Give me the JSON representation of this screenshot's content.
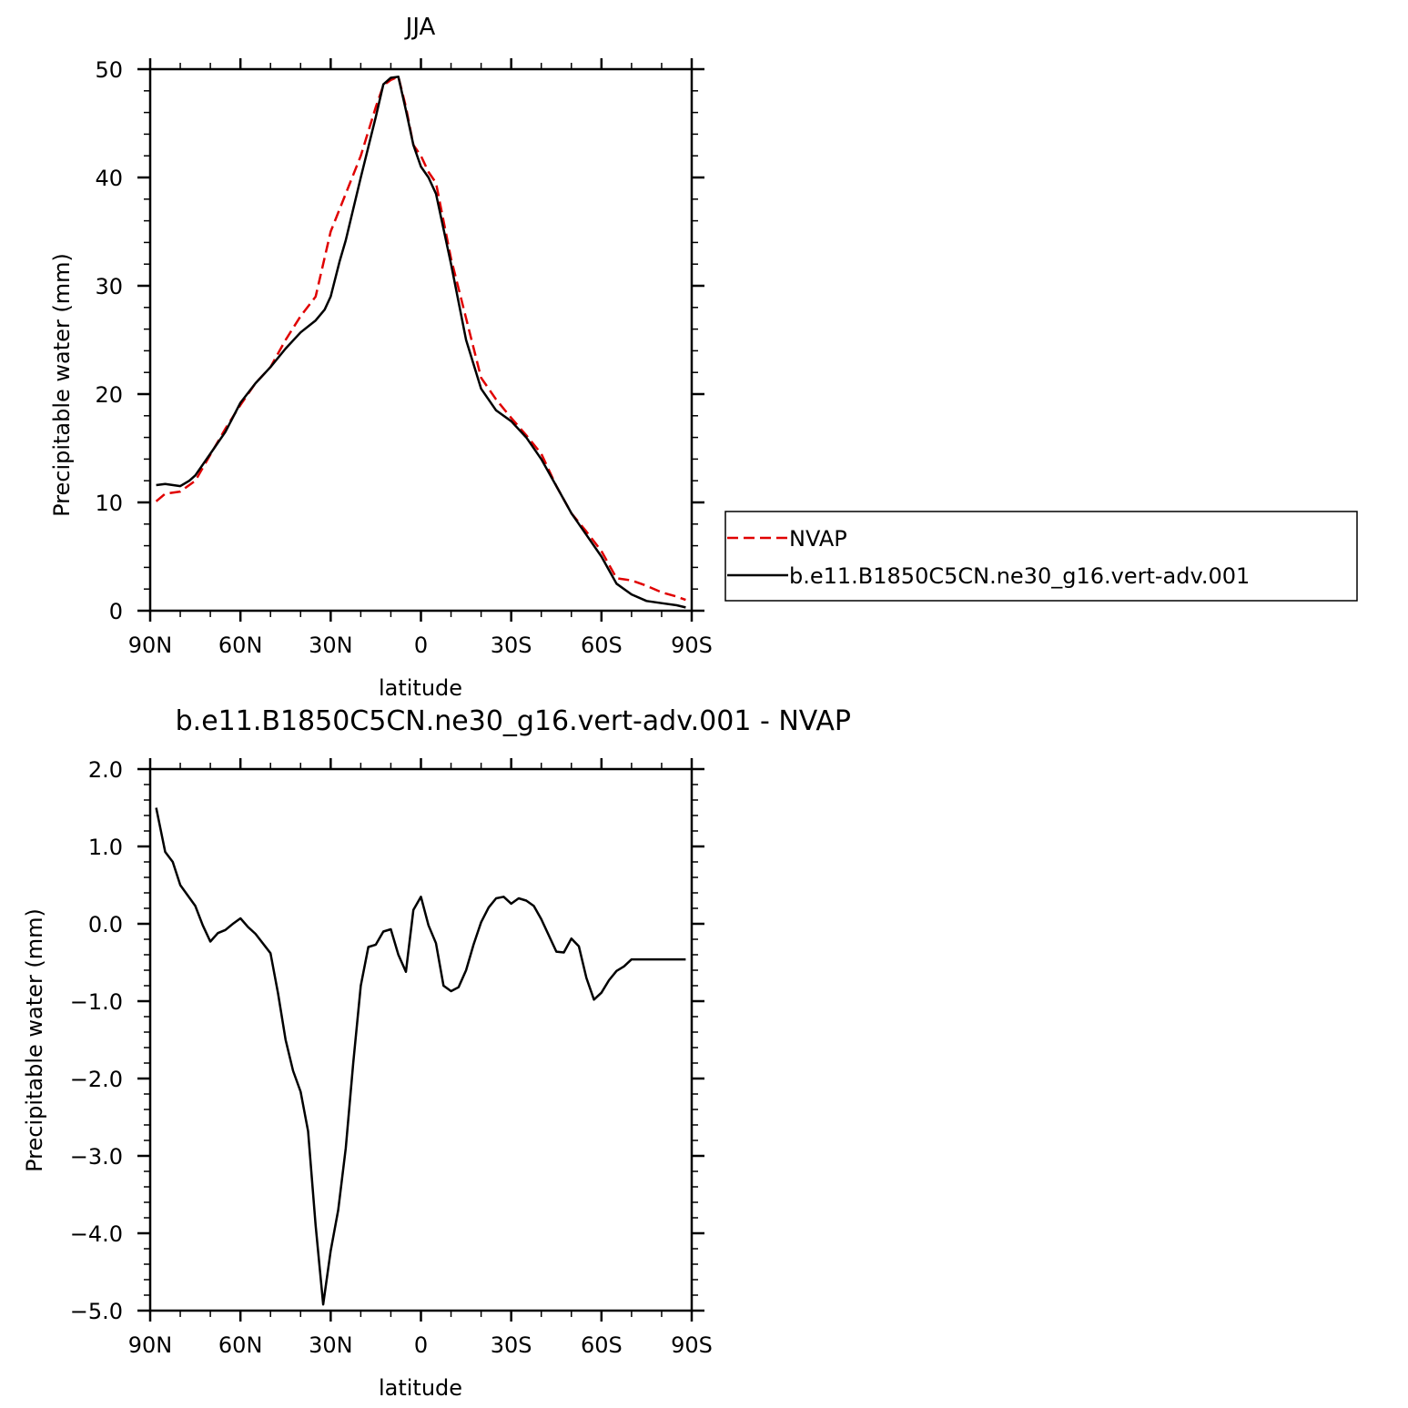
{
  "chart_data": [
    {
      "type": "line",
      "title": "JJA",
      "xlabel": "latitude",
      "ylabel": "Precipitable water (mm)",
      "xlim": [
        90,
        -90
      ],
      "ylim": [
        0,
        50
      ],
      "x_ticks": [
        90,
        60,
        30,
        0,
        -30,
        -60,
        -90
      ],
      "x_tick_labels": [
        "90N",
        "60N",
        "30N",
        "0",
        "30S",
        "60S",
        "90S"
      ],
      "y_ticks": [
        0,
        10,
        20,
        30,
        40,
        50
      ],
      "y_tick_labels": [
        "0",
        "10",
        "20",
        "30",
        "40",
        "50"
      ],
      "legend": {
        "placement": "right",
        "entries": [
          "NVAP",
          "b.e11.B1850C5CN.ne30_g16.vert-adv.001"
        ]
      },
      "series": [
        {
          "name": "NVAP",
          "color": "#e00000",
          "dash": "dashed",
          "x": [
            88,
            85,
            80,
            75,
            70,
            65,
            60,
            55,
            50,
            45,
            40,
            35,
            30,
            25,
            20,
            15,
            12.5,
            10,
            7.5,
            5,
            2.5,
            0,
            -2.5,
            -5,
            -10,
            -15,
            -20,
            -25,
            -30,
            -35,
            -40,
            -45,
            -50,
            -55,
            -60,
            -65,
            -70,
            -75,
            -80,
            -85,
            -88
          ],
          "y": [
            10.1,
            10.8,
            11.0,
            12.0,
            14.4,
            16.8,
            19.0,
            21.0,
            22.5,
            25.0,
            27.2,
            29.0,
            35.0,
            38.5,
            42.0,
            46.5,
            48.5,
            49.0,
            49.3,
            46.5,
            43.0,
            42.0,
            40.5,
            39.5,
            32.5,
            27.0,
            21.5,
            19.5,
            17.8,
            16.2,
            14.5,
            11.5,
            9.0,
            7.3,
            5.5,
            3.0,
            2.8,
            2.3,
            1.7,
            1.3,
            1.0
          ]
        },
        {
          "name": "b.e11.B1850C5CN.ne30_g16.vert-adv.001",
          "color": "#000000",
          "dash": "solid",
          "x": [
            88,
            85,
            80,
            77,
            75,
            70,
            65,
            60,
            55,
            50,
            45,
            40,
            35,
            32,
            30,
            27,
            25,
            20,
            15,
            12.5,
            10,
            7.5,
            5,
            2.5,
            0,
            -2.5,
            -5,
            -10,
            -15,
            -20,
            -25,
            -30,
            -35,
            -40,
            -45,
            -50,
            -55,
            -60,
            -65,
            -70,
            -75,
            -80,
            -85,
            -88
          ],
          "y": [
            11.6,
            11.7,
            11.5,
            12.0,
            12.5,
            14.5,
            16.5,
            19.2,
            21.0,
            22.5,
            24.2,
            25.7,
            26.8,
            27.8,
            29.0,
            32.3,
            34.2,
            40.0,
            45.6,
            48.6,
            49.2,
            49.3,
            46.2,
            43.0,
            41.0,
            40.0,
            38.5,
            32.0,
            25.0,
            20.5,
            18.5,
            17.5,
            16.0,
            14.0,
            11.5,
            9.0,
            7.0,
            5.0,
            2.5,
            1.5,
            0.9,
            0.7,
            0.5,
            0.3
          ]
        }
      ]
    },
    {
      "type": "line",
      "title": "b.e11.B1850C5CN.ne30_g16.vert-adv.001  -  NVAP",
      "xlabel": "latitude",
      "ylabel": "Precipitable water (mm)",
      "xlim": [
        90,
        -90
      ],
      "ylim": [
        -5.0,
        2.0
      ],
      "x_ticks": [
        90,
        60,
        30,
        0,
        -30,
        -60,
        -90
      ],
      "x_tick_labels": [
        "90N",
        "60N",
        "30N",
        "0",
        "30S",
        "60S",
        "90S"
      ],
      "y_ticks": [
        2.0,
        1.0,
        0.0,
        -1.0,
        -2.0,
        -3.0,
        -4.0,
        -5.0
      ],
      "y_tick_labels": [
        "2.0",
        "1.0",
        "0.0",
        "−1.0",
        "−2.0",
        "−3.0",
        "−4.0",
        "−5.0"
      ],
      "series": [
        {
          "color": "#000000",
          "dash": "solid",
          "x": [
            88,
            85,
            82.5,
            80,
            75,
            72.5,
            70,
            67.5,
            65,
            62.5,
            60,
            57.5,
            55,
            50,
            47.5,
            45,
            42.5,
            40,
            37.5,
            35,
            32.5,
            30,
            27.5,
            25,
            22.5,
            20,
            17.5,
            15,
            12.5,
            10,
            7.5,
            5,
            2.5,
            0,
            -2.5,
            -5,
            -7.5,
            -10,
            -12.5,
            -15,
            -17.5,
            -20,
            -22.5,
            -25,
            -27.5,
            -30,
            -32.5,
            -35,
            -37.5,
            -40,
            -45,
            -47.5,
            -50,
            -52.5,
            -55,
            -57.5,
            -60,
            -62.5,
            -65,
            -67.5,
            -70,
            -72.5,
            -75,
            -77.5,
            -80,
            -82.5,
            -85,
            -88
          ],
          "y": [
            1.5,
            0.93,
            0.8,
            0.5,
            0.23,
            -0.02,
            -0.23,
            -0.12,
            -0.08,
            0.0,
            0.07,
            -0.04,
            -0.13,
            -0.38,
            -0.9,
            -1.5,
            -1.9,
            -2.17,
            -2.68,
            -3.9,
            -4.92,
            -4.23,
            -3.7,
            -2.9,
            -1.8,
            -0.8,
            -0.3,
            -0.27,
            -0.1,
            -0.07,
            -0.4,
            -0.62,
            0.18,
            0.35,
            -0.02,
            -0.25,
            -0.8,
            -0.87,
            -0.82,
            -0.6,
            -0.27,
            0.02,
            0.21,
            0.33,
            0.35,
            0.26,
            0.33,
            0.3,
            0.23,
            0.06,
            -0.36,
            -0.37,
            -0.19,
            -0.29,
            -0.7,
            -0.98,
            -0.89,
            -0.73,
            -0.61,
            -0.55,
            -0.46,
            -0.46,
            -0.46,
            -0.46,
            -0.46,
            -0.46,
            -0.46,
            -0.46
          ]
        }
      ]
    }
  ]
}
